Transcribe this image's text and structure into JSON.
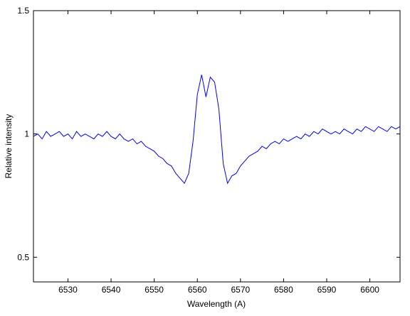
{
  "chart_data": {
    "type": "line",
    "xlabel": "Wavelength (A)",
    "ylabel": "Relative intensity",
    "x": [
      6522,
      6523,
      6524,
      6525,
      6526,
      6527,
      6528,
      6529,
      6530,
      6531,
      6532,
      6533,
      6534,
      6535,
      6536,
      6537,
      6538,
      6539,
      6540,
      6541,
      6542,
      6543,
      6544,
      6545,
      6546,
      6547,
      6548,
      6549,
      6550,
      6551,
      6552,
      6553,
      6554,
      6555,
      6556,
      6557,
      6558,
      6559,
      6560,
      6561,
      6562,
      6563,
      6564,
      6565,
      6566,
      6567,
      6568,
      6569,
      6570,
      6571,
      6572,
      6573,
      6574,
      6575,
      6576,
      6577,
      6578,
      6579,
      6580,
      6581,
      6582,
      6583,
      6584,
      6585,
      6586,
      6587,
      6588,
      6589,
      6590,
      6591,
      6592,
      6593,
      6594,
      6595,
      6596,
      6597,
      6598,
      6599,
      6600,
      6601,
      6602,
      6603,
      6604,
      6605,
      6606,
      6607
    ],
    "series": [
      {
        "color": "#0000ff",
        "values": [
          0.99,
          1.0,
          0.98,
          1.01,
          0.99,
          1.0,
          1.01,
          0.99,
          1.0,
          0.98,
          1.01,
          0.99,
          1.0,
          0.99,
          0.98,
          1.0,
          0.99,
          1.01,
          0.99,
          0.98,
          1.0,
          0.98,
          0.97,
          0.98,
          0.96,
          0.97,
          0.95,
          0.94,
          0.93,
          0.91,
          0.9,
          0.88,
          0.87,
          0.84,
          0.82,
          0.8,
          0.84,
          0.97,
          1.16,
          1.24,
          1.15,
          1.23,
          1.21,
          1.1,
          0.88,
          0.8,
          0.83,
          0.84,
          0.87,
          0.89,
          0.91,
          0.92,
          0.93,
          0.95,
          0.94,
          0.96,
          0.97,
          0.96,
          0.98,
          0.97,
          0.98,
          0.99,
          0.98,
          1.0,
          0.99,
          1.01,
          1.0,
          1.02,
          1.01,
          1.0,
          1.01,
          1.0,
          1.02,
          1.01,
          1.0,
          1.02,
          1.01,
          1.03,
          1.02,
          1.01,
          1.03,
          1.02,
          1.01,
          1.03,
          1.02,
          1.03
        ]
      }
    ],
    "xlim": [
      6522,
      6607
    ],
    "ylim": [
      0.4,
      1.5
    ],
    "xticks": [
      6530,
      6540,
      6550,
      6560,
      6570,
      6580,
      6590,
      6600
    ],
    "yticks": [
      0.5,
      1,
      1.5
    ]
  }
}
